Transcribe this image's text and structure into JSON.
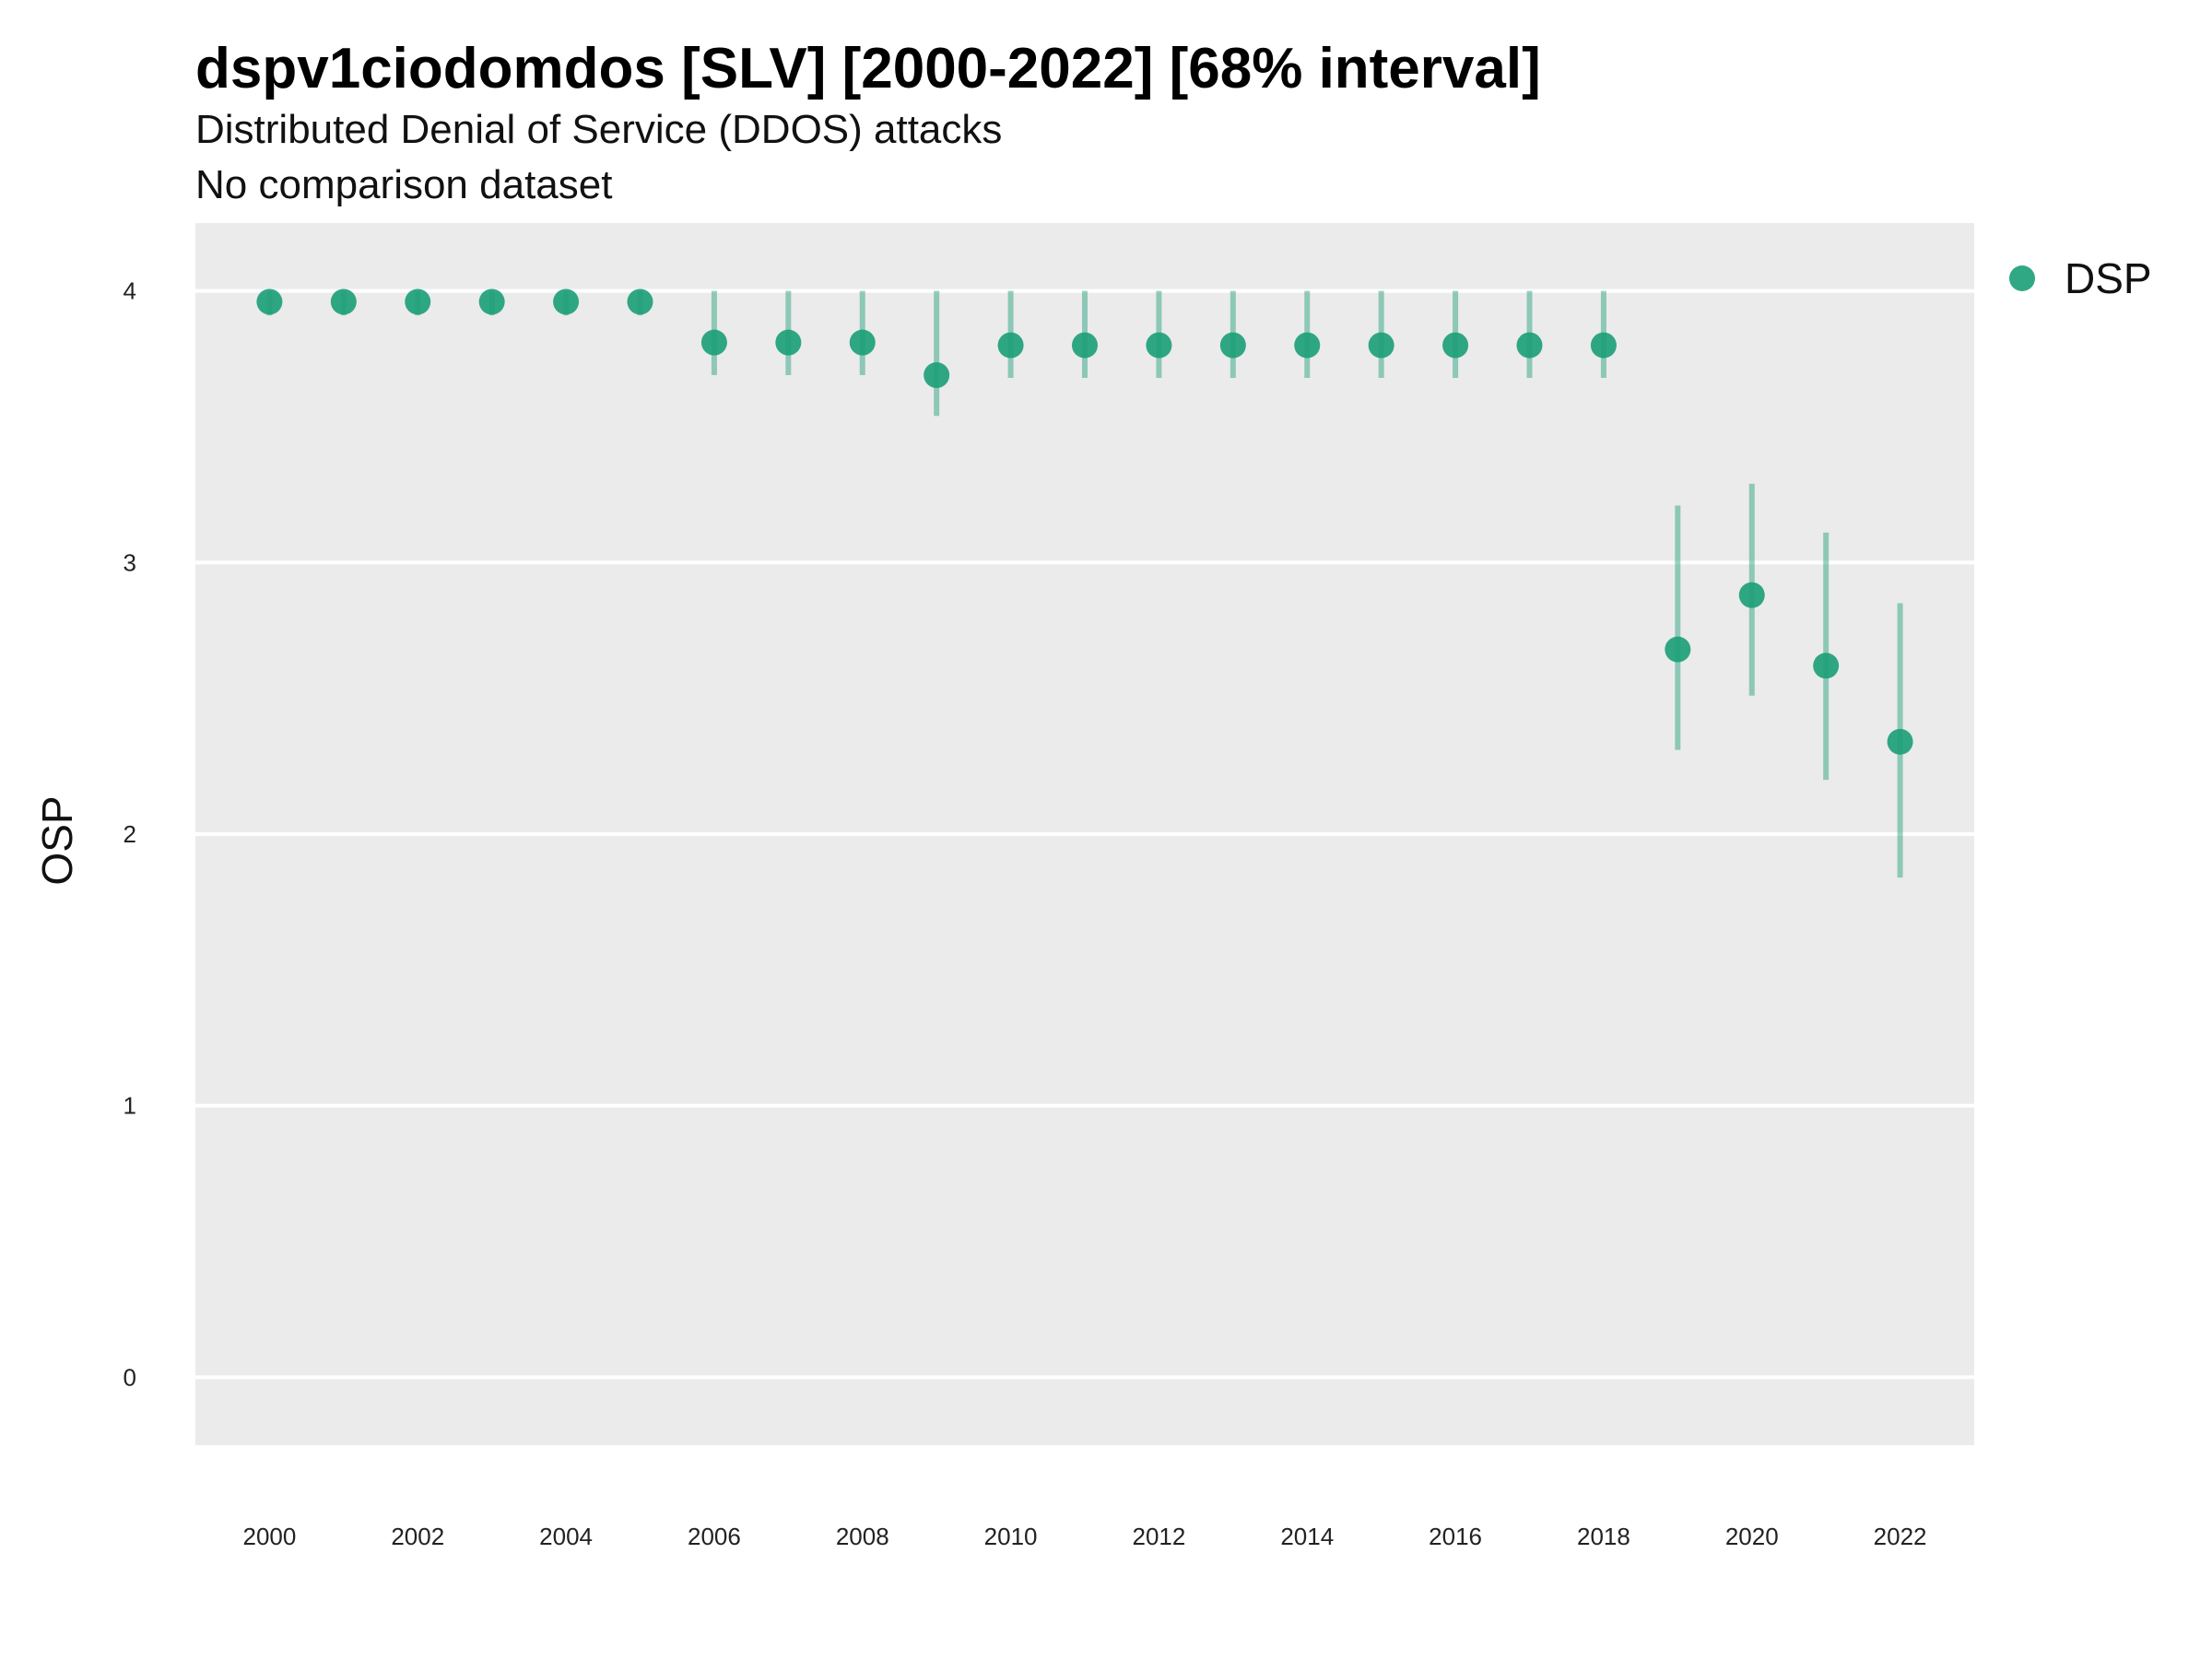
{
  "chart_data": {
    "type": "scatter",
    "title": "dspv1ciodomdos [SLV] [2000-2022] [68% interval]",
    "subtitle": "Distributed Denial of Service (DDOS) attacks",
    "subtitle2": "No comparison dataset",
    "xlabel": "",
    "ylabel": "OSP",
    "ylim": [
      -0.25,
      4.25
    ],
    "xlim": [
      1999.0,
      2023.0
    ],
    "y_ticks": [
      0,
      1,
      2,
      3,
      4
    ],
    "x_ticks": [
      2000,
      2002,
      2004,
      2006,
      2008,
      2010,
      2012,
      2014,
      2016,
      2018,
      2020,
      2022
    ],
    "grid": true,
    "legend_position": "right",
    "series": [
      {
        "name": "DSP",
        "color": "#1b9e77",
        "x": [
          2000,
          2001,
          2002,
          2003,
          2004,
          2005,
          2006,
          2007,
          2008,
          2009,
          2010,
          2011,
          2012,
          2013,
          2014,
          2015,
          2016,
          2017,
          2018,
          2019,
          2020,
          2021,
          2022
        ],
        "y": [
          3.96,
          3.96,
          3.96,
          3.96,
          3.96,
          3.96,
          3.81,
          3.81,
          3.81,
          3.69,
          3.8,
          3.8,
          3.8,
          3.8,
          3.8,
          3.8,
          3.8,
          3.8,
          3.8,
          2.68,
          2.88,
          2.62,
          2.34
        ],
        "lower": [
          3.91,
          3.91,
          3.91,
          3.91,
          3.91,
          3.91,
          3.69,
          3.69,
          3.69,
          3.54,
          3.68,
          3.68,
          3.68,
          3.68,
          3.68,
          3.68,
          3.68,
          3.68,
          3.68,
          2.31,
          2.51,
          2.2,
          1.84
        ],
        "upper": [
          4.0,
          4.0,
          4.0,
          4.0,
          4.0,
          4.0,
          4.0,
          4.0,
          4.0,
          4.0,
          4.0,
          4.0,
          4.0,
          4.0,
          4.0,
          4.0,
          4.0,
          4.0,
          4.0,
          3.21,
          3.29,
          3.11,
          2.85
        ]
      }
    ]
  }
}
